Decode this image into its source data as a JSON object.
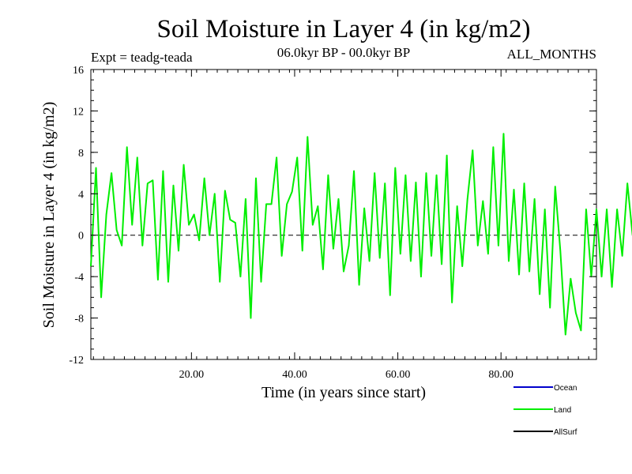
{
  "chart_data": {
    "type": "line",
    "title": "Soil Moisture in Layer 4 (in kg/m2)",
    "subtitle": "06.0kyr BP - 00.0kyr BP",
    "experiment": "Expt = teadg-teada",
    "period": "ALL_MONTHS",
    "xlabel": "Time (in years since start)",
    "ylabel": "Soil Moisture in Layer 4 (in kg/m2)",
    "xlim": [
      0.5,
      98.5
    ],
    "ylim": [
      -12,
      16
    ],
    "x_ticks": [
      20,
      40,
      60,
      80
    ],
    "x_tick_labels": [
      "20.00",
      "40.00",
      "60.00",
      "80.00"
    ],
    "y_ticks": [
      -12,
      -8,
      -4,
      0,
      4,
      8,
      12,
      16
    ],
    "y_tick_labels": [
      "-12",
      "-8",
      "-4",
      "0",
      "4",
      "8",
      "12",
      "16"
    ],
    "zero_line": true,
    "legend": [
      {
        "name": "Ocean",
        "color": "#0000cc"
      },
      {
        "name": "Land",
        "color": "#00ee00"
      },
      {
        "name": "AllSurf",
        "color": "#000000"
      }
    ],
    "series": [
      {
        "name": "Land",
        "color": "#00ee00",
        "x_start": 0.5,
        "x_step": 1,
        "values": [
          -3,
          6.5,
          -6,
          2,
          6,
          0.5,
          -1,
          8.5,
          1,
          7.5,
          -1,
          5,
          5.3,
          -4.3,
          6.2,
          -4.5,
          4.8,
          -1.5,
          6.8,
          1,
          2,
          -0.5,
          5.5,
          0,
          4,
          -4.5,
          4.3,
          1.5,
          1.2,
          -4,
          3.5,
          -8,
          5.5,
          -4.5,
          3,
          3,
          7.5,
          -2,
          3,
          4.2,
          7.5,
          -1.5,
          9.5,
          1,
          2.8,
          -3.3,
          5.8,
          -1.3,
          3.5,
          -3.5,
          -1,
          6.2,
          -4.8,
          2.6,
          -2.5,
          6,
          -2.2,
          5,
          -5.8,
          6.5,
          -1.8,
          5.8,
          -2.5,
          5.1,
          -4,
          6,
          -2,
          5.8,
          -2.8,
          7.7,
          -6.5,
          2.8,
          -3,
          3.5,
          8.2,
          -1,
          3.3,
          -1.8,
          8.5,
          -1,
          9.8,
          -2.5,
          4.4,
          -3.8,
          5,
          -3.5,
          3.5,
          -5.7,
          2.5,
          -7,
          4.7,
          -1.5,
          -9.6,
          -4.2,
          -7.5,
          -9.2,
          2.5,
          -4,
          2.5,
          -4,
          2.5,
          -5,
          2.5,
          -2,
          5,
          0,
          3.5,
          6.3,
          -4,
          6,
          0,
          5,
          -2,
          6.5,
          -6,
          5,
          -2,
          4.8,
          -1.5,
          6,
          -4,
          5,
          -3,
          6,
          0.5,
          5.5,
          -0.5,
          5.5,
          -2.3,
          5.8,
          -7.3,
          2.3,
          -5.8,
          5.3,
          -1.8,
          3.7,
          -3,
          6.3,
          -2.5,
          5.8,
          -2,
          -0.8,
          5,
          -9.5,
          5.5,
          -2.5,
          5,
          -1.5,
          8,
          12.5,
          -2,
          9.5,
          4.2,
          11,
          6,
          12.5,
          4.8,
          10,
          4,
          9,
          1.5,
          11.5,
          3.5,
          13.8,
          3.1,
          11.2,
          1.5,
          7.5,
          -1.5,
          10.5,
          3,
          9.5,
          -5.5,
          6.5,
          -1.5,
          11.2,
          2.5,
          5.5,
          -0.5,
          5,
          -0.5,
          4,
          -6.6,
          7.3,
          3.5,
          5.5,
          -4.5,
          -1.5,
          -5.5,
          4,
          3
        ]
      }
    ]
  }
}
